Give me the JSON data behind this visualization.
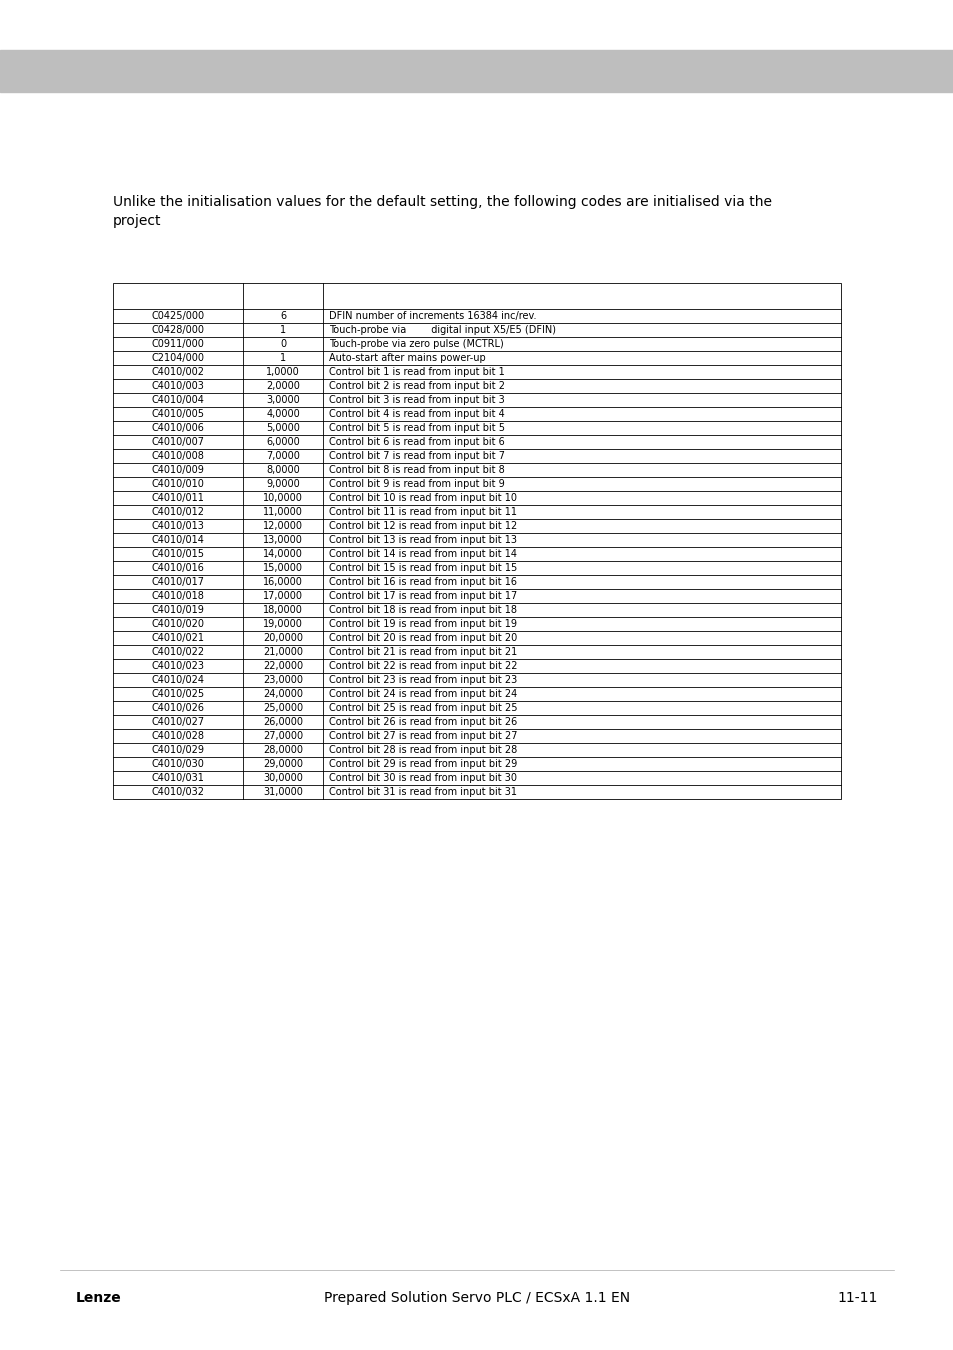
{
  "bg_color": "#ffffff",
  "header_bar_color": "#bebebe",
  "intro_text": "Unlike the initialisation values for the default setting, the following codes are initialised via the\nproject",
  "table_data": [
    [
      "C0425/000",
      "6",
      "DFIN number of increments 16384 inc/rev."
    ],
    [
      "C0428/000",
      "1",
      "Touch-probe via        digital input X5/E5 (DFIN)"
    ],
    [
      "C0911/000",
      "0",
      "Touch-probe via zero pulse (MCTRL)"
    ],
    [
      "C2104/000",
      "1",
      "Auto-start after mains power-up"
    ],
    [
      "C4010/002",
      "1,0000",
      "Control bit 1 is read from input bit 1"
    ],
    [
      "C4010/003",
      "2,0000",
      "Control bit 2 is read from input bit 2"
    ],
    [
      "C4010/004",
      "3,0000",
      "Control bit 3 is read from input bit 3"
    ],
    [
      "C4010/005",
      "4,0000",
      "Control bit 4 is read from input bit 4"
    ],
    [
      "C4010/006",
      "5,0000",
      "Control bit 5 is read from input bit 5"
    ],
    [
      "C4010/007",
      "6,0000",
      "Control bit 6 is read from input bit 6"
    ],
    [
      "C4010/008",
      "7,0000",
      "Control bit 7 is read from input bit 7"
    ],
    [
      "C4010/009",
      "8,0000",
      "Control bit 8 is read from input bit 8"
    ],
    [
      "C4010/010",
      "9,0000",
      "Control bit 9 is read from input bit 9"
    ],
    [
      "C4010/011",
      "10,0000",
      "Control bit 10 is read from input bit 10"
    ],
    [
      "C4010/012",
      "11,0000",
      "Control bit 11 is read from input bit 11"
    ],
    [
      "C4010/013",
      "12,0000",
      "Control bit 12 is read from input bit 12"
    ],
    [
      "C4010/014",
      "13,0000",
      "Control bit 13 is read from input bit 13"
    ],
    [
      "C4010/015",
      "14,0000",
      "Control bit 14 is read from input bit 14"
    ],
    [
      "C4010/016",
      "15,0000",
      "Control bit 15 is read from input bit 15"
    ],
    [
      "C4010/017",
      "16,0000",
      "Control bit 16 is read from input bit 16"
    ],
    [
      "C4010/018",
      "17,0000",
      "Control bit 17 is read from input bit 17"
    ],
    [
      "C4010/019",
      "18,0000",
      "Control bit 18 is read from input bit 18"
    ],
    [
      "C4010/020",
      "19,0000",
      "Control bit 19 is read from input bit 19"
    ],
    [
      "C4010/021",
      "20,0000",
      "Control bit 20 is read from input bit 20"
    ],
    [
      "C4010/022",
      "21,0000",
      "Control bit 21 is read from input bit 21"
    ],
    [
      "C4010/023",
      "22,0000",
      "Control bit 22 is read from input bit 22"
    ],
    [
      "C4010/024",
      "23,0000",
      "Control bit 23 is read from input bit 23"
    ],
    [
      "C4010/025",
      "24,0000",
      "Control bit 24 is read from input bit 24"
    ],
    [
      "C4010/026",
      "25,0000",
      "Control bit 25 is read from input bit 25"
    ],
    [
      "C4010/027",
      "26,0000",
      "Control bit 26 is read from input bit 26"
    ],
    [
      "C4010/028",
      "27,0000",
      "Control bit 27 is read from input bit 27"
    ],
    [
      "C4010/029",
      "28,0000",
      "Control bit 28 is read from input bit 28"
    ],
    [
      "C4010/030",
      "29,0000",
      "Control bit 29 is read from input bit 29"
    ],
    [
      "C4010/031",
      "30,0000",
      "Control bit 30 is read from input bit 30"
    ],
    [
      "C4010/032",
      "31,0000",
      "Control bit 31 is read from input bit 31"
    ]
  ],
  "footer_text_center": "Prepared Solution Servo PLC / ECSxA 1.1 EN",
  "footer_text_right": "11-11",
  "footer_text_left": "Lenze",
  "line_color": "#000000",
  "text_color": "#000000",
  "cell_text_size": 7.0,
  "intro_text_size": 10.0,
  "footer_text_size": 10.0
}
